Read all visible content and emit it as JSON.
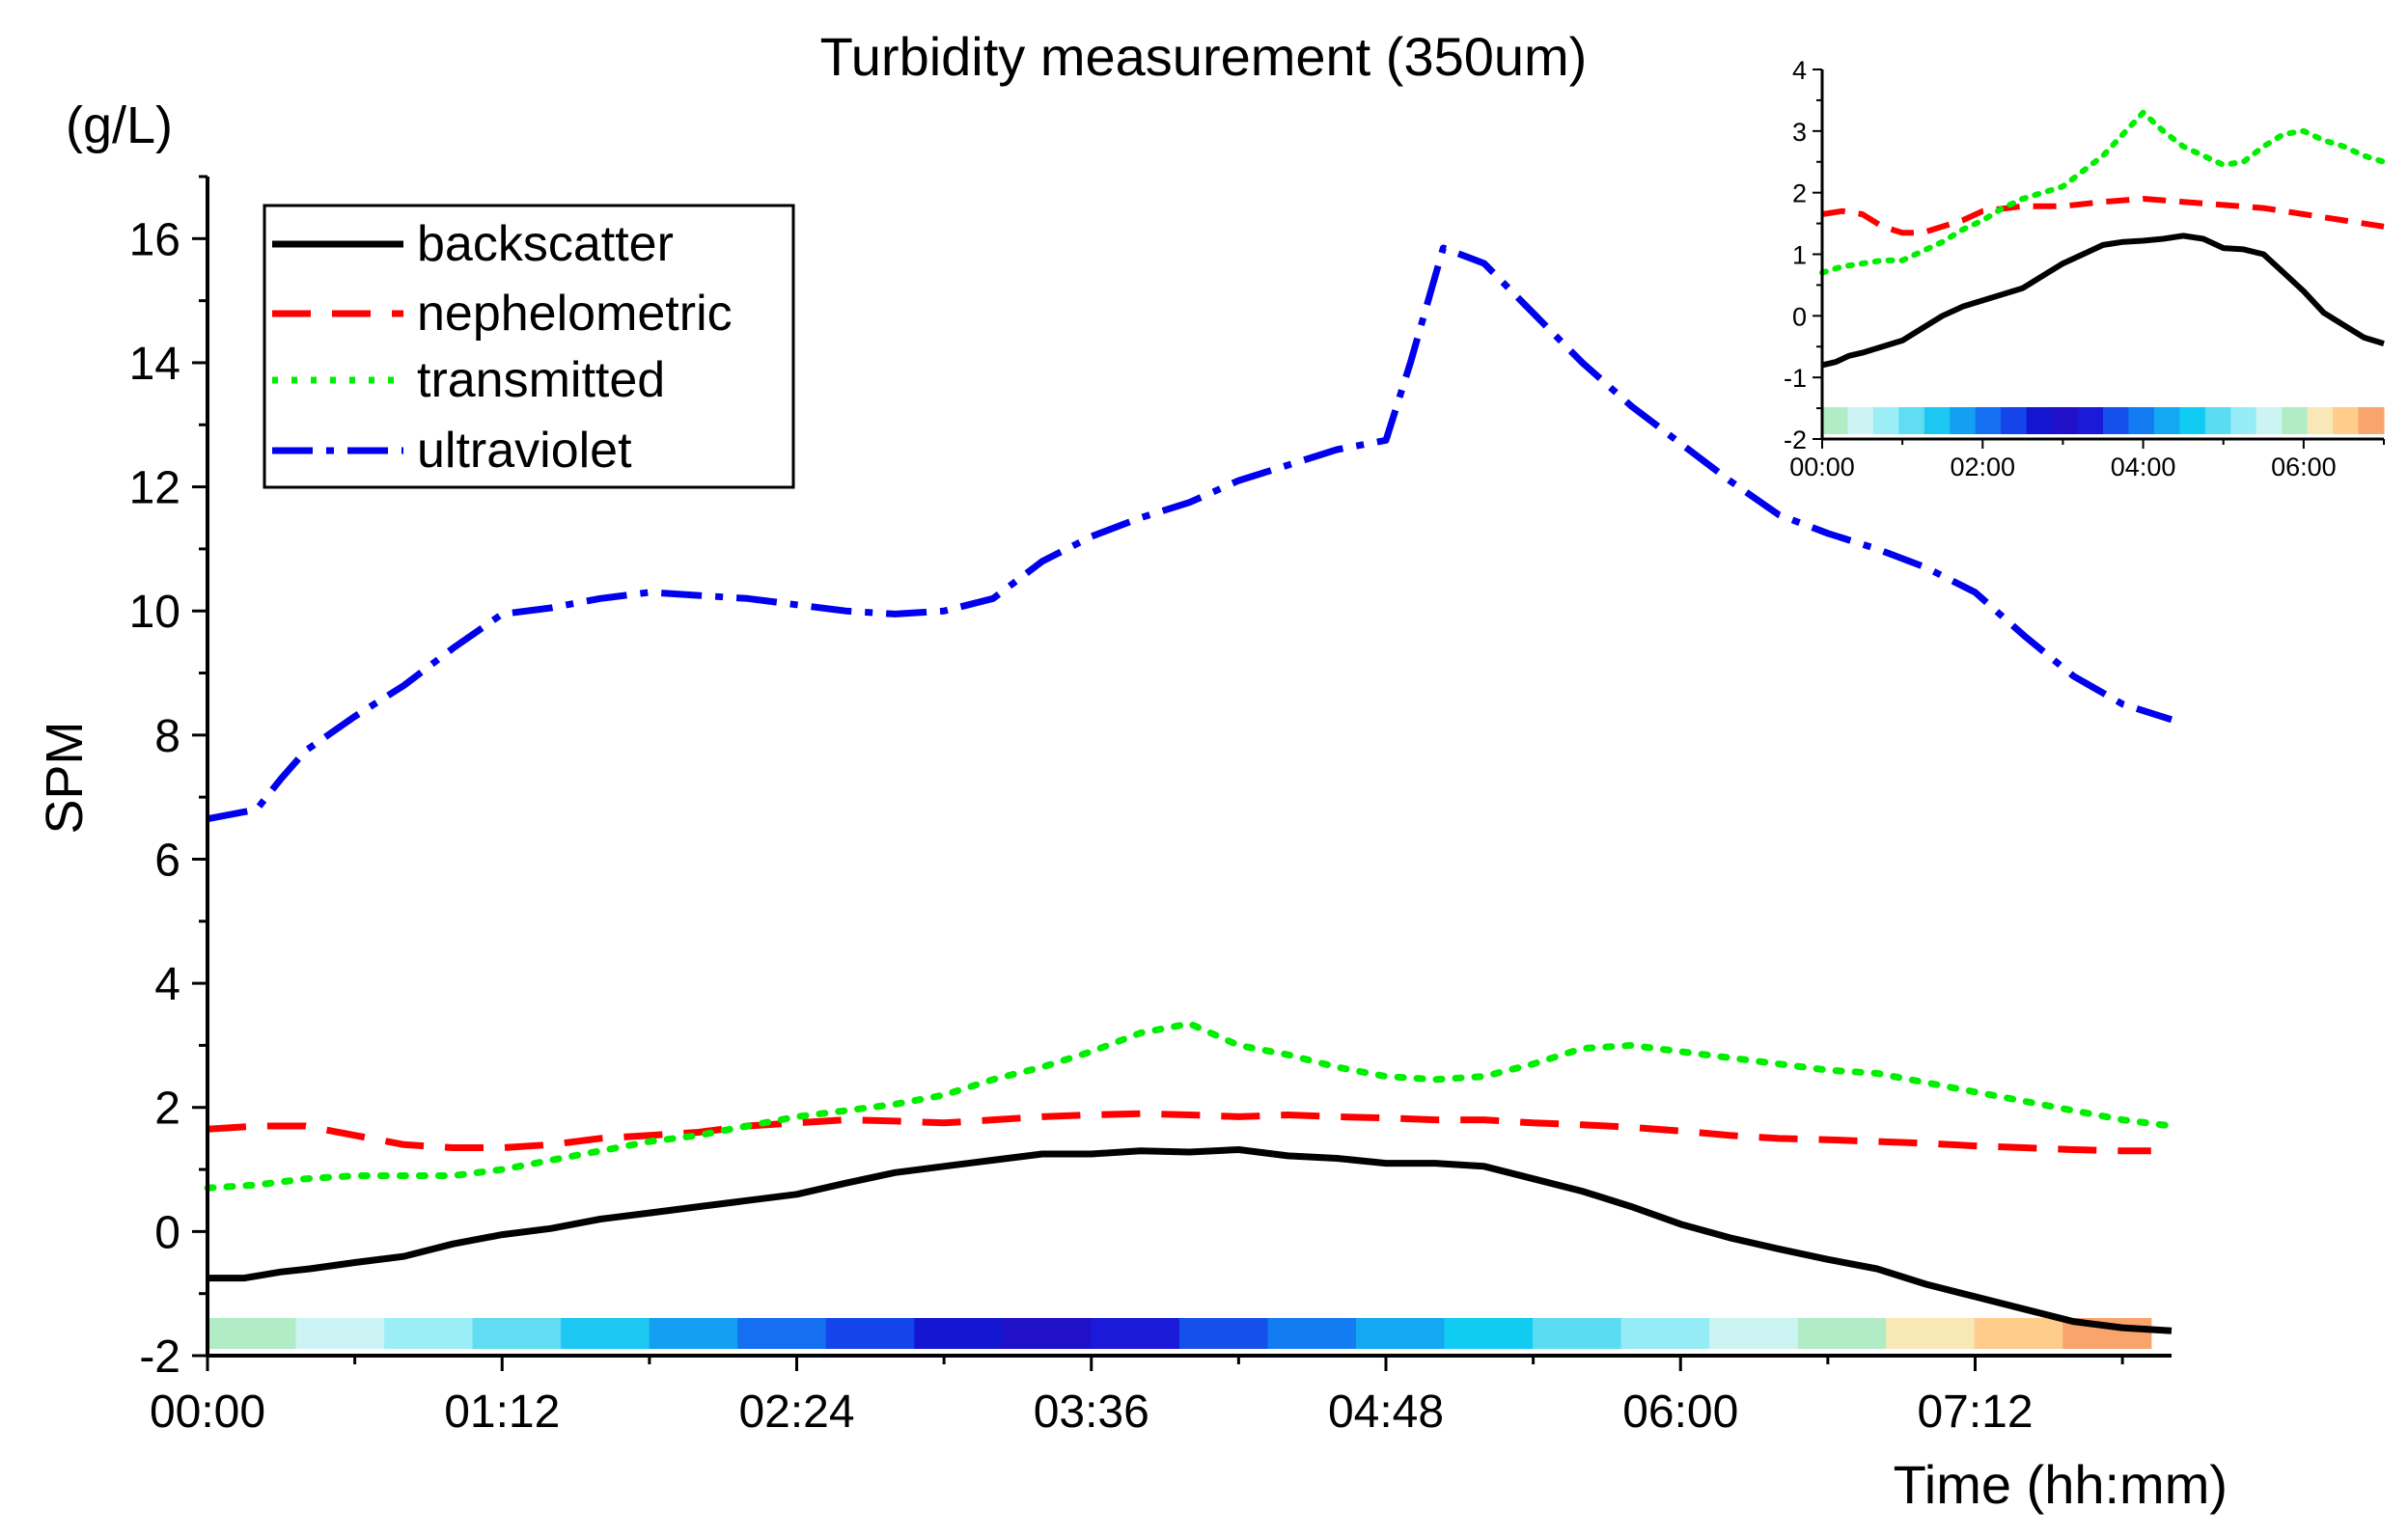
{
  "chart_data": {
    "type": "line",
    "title": "Turbidity measurement (350um)",
    "ylabel": "SPM",
    "yunit": "(g/L)",
    "xlabel": "Time (hh:mm)",
    "ylim": [
      -2,
      17
    ],
    "xlim": [
      0,
      480
    ],
    "yticks": [
      -2,
      0,
      2,
      4,
      6,
      8,
      10,
      12,
      14,
      16
    ],
    "xticks": [
      {
        "minutes": 0,
        "label": "00:00"
      },
      {
        "minutes": 72,
        "label": "01:12"
      },
      {
        "minutes": 144,
        "label": "02:24"
      },
      {
        "minutes": 216,
        "label": "03:36"
      },
      {
        "minutes": 288,
        "label": "04:48"
      },
      {
        "minutes": 360,
        "label": "06:00"
      },
      {
        "minutes": 432,
        "label": "07:12"
      }
    ],
    "legend": {
      "position": "top-left",
      "entries": [
        "backscatter",
        "nephelometric",
        "transmitted",
        "ultraviolet"
      ]
    },
    "series": [
      {
        "name": "backscatter",
        "color": "#000000",
        "dash": "solid",
        "x": [
          0,
          9,
          18,
          25,
          36,
          48,
          60,
          72,
          84,
          96,
          108,
          120,
          132,
          144,
          156,
          168,
          180,
          192,
          204,
          216,
          228,
          240,
          252,
          264,
          276,
          288,
          300,
          312,
          324,
          336,
          348,
          360,
          372,
          384,
          396,
          408,
          420,
          432,
          444,
          456,
          468,
          480
        ],
        "y": [
          -0.75,
          -0.75,
          -0.65,
          -0.6,
          -0.5,
          -0.4,
          -0.2,
          -0.05,
          0.05,
          0.2,
          0.3,
          0.4,
          0.5,
          0.6,
          0.78,
          0.95,
          1.05,
          1.15,
          1.25,
          1.25,
          1.3,
          1.28,
          1.32,
          1.22,
          1.18,
          1.1,
          1.1,
          1.05,
          0.85,
          0.65,
          0.4,
          0.12,
          -0.1,
          -0.28,
          -0.45,
          -0.6,
          -0.85,
          -1.05,
          -1.25,
          -1.45,
          -1.55,
          -1.6
        ]
      },
      {
        "name": "nephelometric",
        "color": "#ff0000",
        "dash": "dash",
        "x": [
          0,
          12,
          24,
          36,
          48,
          60,
          72,
          84,
          96,
          108,
          120,
          132,
          144,
          156,
          168,
          180,
          192,
          204,
          216,
          228,
          240,
          252,
          264,
          276,
          288,
          300,
          312,
          324,
          336,
          348,
          360,
          372,
          384,
          396,
          408,
          420,
          432,
          444,
          456,
          468,
          475
        ],
        "y": [
          1.65,
          1.7,
          1.7,
          1.55,
          1.4,
          1.35,
          1.35,
          1.4,
          1.5,
          1.55,
          1.6,
          1.7,
          1.75,
          1.8,
          1.78,
          1.75,
          1.8,
          1.85,
          1.88,
          1.9,
          1.88,
          1.85,
          1.88,
          1.85,
          1.83,
          1.8,
          1.8,
          1.75,
          1.72,
          1.68,
          1.62,
          1.55,
          1.5,
          1.48,
          1.45,
          1.42,
          1.38,
          1.35,
          1.32,
          1.3,
          1.3
        ]
      },
      {
        "name": "transmitted",
        "color": "#00ee00",
        "dash": "dot",
        "x": [
          0,
          12,
          24,
          36,
          48,
          60,
          72,
          84,
          96,
          108,
          120,
          132,
          144,
          156,
          168,
          180,
          192,
          204,
          216,
          228,
          240,
          252,
          264,
          276,
          288,
          300,
          312,
          324,
          336,
          348,
          360,
          372,
          384,
          396,
          408,
          420,
          432,
          444,
          456,
          468,
          480
        ],
        "y": [
          0.7,
          0.75,
          0.85,
          0.9,
          0.9,
          0.9,
          1.0,
          1.15,
          1.3,
          1.45,
          1.55,
          1.7,
          1.85,
          1.95,
          2.05,
          2.2,
          2.45,
          2.65,
          2.9,
          3.2,
          3.35,
          3.0,
          2.85,
          2.65,
          2.5,
          2.45,
          2.5,
          2.7,
          2.95,
          3.0,
          2.9,
          2.8,
          2.7,
          2.6,
          2.55,
          2.4,
          2.25,
          2.1,
          1.95,
          1.8,
          1.7
        ]
      },
      {
        "name": "ultraviolet",
        "color": "#0000ee",
        "dash": "dashdot",
        "x": [
          0,
          12,
          18,
          24,
          36,
          48,
          60,
          72,
          84,
          96,
          108,
          120,
          132,
          144,
          156,
          168,
          180,
          192,
          204,
          216,
          228,
          240,
          252,
          264,
          276,
          288,
          294,
          302,
          312,
          324,
          336,
          348,
          360,
          372,
          384,
          396,
          408,
          420,
          432,
          444,
          456,
          468,
          480
        ],
        "y": [
          6.65,
          6.8,
          7.3,
          7.75,
          8.3,
          8.8,
          9.4,
          9.95,
          10.05,
          10.2,
          10.3,
          10.25,
          10.2,
          10.1,
          10.0,
          9.95,
          10.0,
          10.2,
          10.8,
          11.2,
          11.5,
          11.75,
          12.1,
          12.35,
          12.6,
          12.75,
          14.0,
          15.85,
          15.6,
          14.8,
          14.0,
          13.3,
          12.7,
          12.1,
          11.55,
          11.25,
          11.0,
          10.7,
          10.3,
          9.6,
          8.95,
          8.5,
          8.25
        ]
      }
    ],
    "bottom_color_strip": {
      "range_minutes": [
        0,
        475
      ],
      "colors": [
        "#b2ecc6",
        "#cdf4f4",
        "#9ceef6",
        "#60dcf3",
        "#1cc8f2",
        "#14a0f2",
        "#1470f0",
        "#1445ea",
        "#1417d2",
        "#2010c8",
        "#1a1ad8",
        "#1450ea",
        "#147cf2",
        "#14a8f2",
        "#10ccf2",
        "#5cdcf2",
        "#96ecf6",
        "#ccf4f2",
        "#b2ecc6",
        "#f8e8b6",
        "#ffcc8c",
        "#f8a46c"
      ]
    },
    "inset": {
      "position": "top-right",
      "ylim": [
        -2,
        4
      ],
      "xlim": [
        0,
        420
      ],
      "yticks": [
        -2,
        -1,
        0,
        1,
        2,
        3,
        4
      ],
      "xticks": [
        {
          "minutes": 0,
          "label": "00:00"
        },
        {
          "minutes": 120,
          "label": "02:00"
        },
        {
          "minutes": 240,
          "label": "04:00"
        },
        {
          "minutes": 360,
          "label": "06:00"
        }
      ],
      "series": [
        {
          "name": "backscatter",
          "color": "#000000",
          "dash": "solid",
          "x": [
            0,
            10,
            20,
            30,
            45,
            60,
            75,
            90,
            105,
            120,
            135,
            150,
            165,
            180,
            195,
            210,
            225,
            240,
            255,
            270,
            285,
            300,
            315,
            330,
            345,
            360,
            375,
            390,
            405,
            420
          ],
          "y": [
            -0.8,
            -0.75,
            -0.65,
            -0.6,
            -0.5,
            -0.4,
            -0.2,
            0.0,
            0.15,
            0.25,
            0.35,
            0.45,
            0.65,
            0.85,
            1.0,
            1.15,
            1.2,
            1.22,
            1.25,
            1.3,
            1.25,
            1.1,
            1.08,
            1.0,
            0.7,
            0.4,
            0.05,
            -0.15,
            -0.35,
            -0.45
          ]
        },
        {
          "name": "nephelometric",
          "color": "#ff0000",
          "dash": "dash",
          "x": [
            0,
            15,
            30,
            45,
            60,
            75,
            90,
            105,
            120,
            150,
            180,
            210,
            240,
            270,
            300,
            330,
            360,
            390,
            420
          ],
          "y": [
            1.65,
            1.7,
            1.65,
            1.45,
            1.35,
            1.35,
            1.45,
            1.55,
            1.7,
            1.78,
            1.78,
            1.85,
            1.9,
            1.85,
            1.8,
            1.75,
            1.65,
            1.55,
            1.45
          ]
        },
        {
          "name": "transmitted",
          "color": "#00ee00",
          "dash": "dot",
          "x": [
            0,
            15,
            30,
            45,
            60,
            75,
            90,
            105,
            120,
            135,
            150,
            165,
            180,
            195,
            210,
            225,
            240,
            255,
            270,
            285,
            300,
            315,
            330,
            345,
            360,
            375,
            390,
            405,
            420
          ],
          "y": [
            0.7,
            0.8,
            0.85,
            0.9,
            0.9,
            1.05,
            1.2,
            1.4,
            1.55,
            1.75,
            1.9,
            2.0,
            2.1,
            2.35,
            2.6,
            2.95,
            3.3,
            3.0,
            2.75,
            2.6,
            2.45,
            2.5,
            2.75,
            2.95,
            3.0,
            2.85,
            2.75,
            2.6,
            2.5
          ]
        }
      ],
      "color_strip_colors": [
        "#b2ecc6",
        "#cdf4f4",
        "#9ceef6",
        "#60dcf3",
        "#1cc8f2",
        "#14a0f2",
        "#1470f0",
        "#1445ea",
        "#1417d2",
        "#2010c8",
        "#1a1ad8",
        "#1450ea",
        "#147cf2",
        "#14a8f2",
        "#10ccf2",
        "#5cdcf2",
        "#96ecf6",
        "#ccf4f2",
        "#b2ecc6",
        "#f8e8b6",
        "#ffcc8c",
        "#f8a46c"
      ]
    }
  }
}
